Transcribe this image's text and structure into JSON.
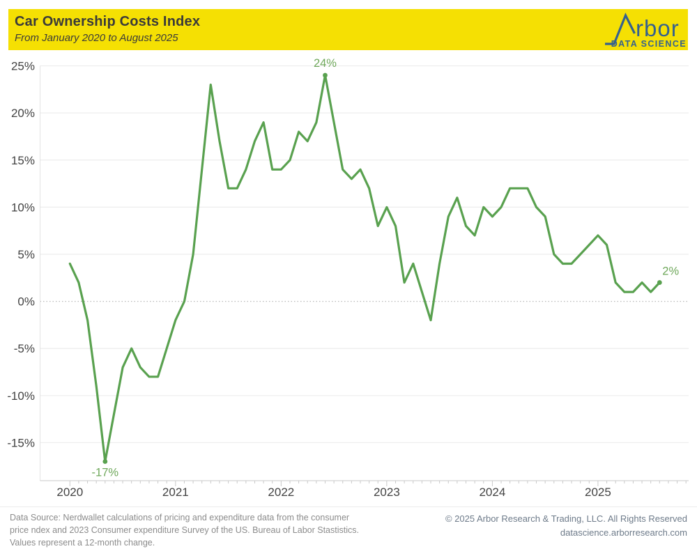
{
  "header": {
    "title": "Car Ownership Costs Index",
    "subtitle": "From January 2020 to August 2025",
    "banner_color": "#F5E003",
    "text_color": "#3A3A3A"
  },
  "logo": {
    "name": "Arbor Data Science",
    "word": "rbor",
    "tagline": "DATA SCIENCE",
    "color": "#35618E"
  },
  "chart_data": {
    "type": "line",
    "title": "Car Ownership Costs Index",
    "subtitle": "From January 2020 to August 2025",
    "x_start": "2020-01",
    "x_end": "2025-08",
    "frequency": "monthly",
    "x_tick_labels": [
      "2020",
      "2021",
      "2022",
      "2023",
      "2024",
      "2025"
    ],
    "y_ticks": [
      25,
      20,
      15,
      10,
      5,
      0,
      -5,
      -10,
      -15
    ],
    "y_unit": "%",
    "ylim": [
      -19,
      26
    ],
    "grid": "horizontal gridlines, zero line dotted",
    "legend": "none",
    "line_color": "#59A14F",
    "annotation_color": "#6FA85B",
    "series": [
      {
        "name": "Car ownership costs index, 12-month change (%)",
        "start": "2020-01",
        "values": [
          4,
          2,
          -2,
          -9,
          -17,
          -12,
          -7,
          -5,
          -7,
          -8,
          -8,
          -5,
          -2,
          0,
          5,
          14,
          23,
          17,
          12,
          12,
          14,
          17,
          19,
          14,
          14,
          15,
          18,
          17,
          19,
          24,
          19,
          14,
          13,
          14,
          12,
          8,
          10,
          8,
          2,
          4,
          1,
          -2,
          4,
          9,
          11,
          8,
          7,
          10,
          9,
          10,
          12,
          12,
          12,
          10,
          9,
          5,
          4,
          4,
          5,
          6,
          7,
          6,
          2,
          1,
          1,
          2,
          1,
          2
        ]
      }
    ],
    "annotations": [
      {
        "x": "2020-05",
        "value": -17,
        "label": "-17%",
        "position": "below"
      },
      {
        "x": "2022-06",
        "value": 24,
        "label": "24%",
        "position": "above"
      },
      {
        "x": "2025-08",
        "value": 2,
        "label": "2%",
        "position": "right"
      }
    ]
  },
  "footer": {
    "left_lines": [
      "Data Source: Nerdwallet calculations of pricing and expenditure data from the consumer",
      "price ndex and 2023 Consumer expenditure Survey of the US. Bureau of Labor Stastistics.",
      "Values represent a 12-month change."
    ],
    "right_lines": [
      "© 2025 Arbor Research & Trading, LLC. All Rights Reserved",
      "datascience.arborresearch.com"
    ]
  }
}
